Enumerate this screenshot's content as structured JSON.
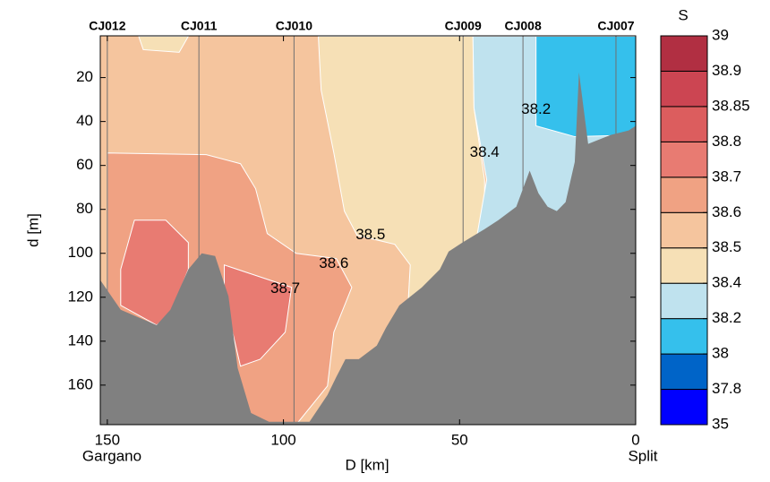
{
  "chart_data": {
    "type": "contour",
    "xlabel": "D [km]",
    "ylabel": "d [m]",
    "left_label": "Gargano",
    "right_label": "Split",
    "xlim": [
      152,
      0
    ],
    "ylim": [
      1,
      178
    ],
    "xticks": [
      150,
      100,
      50,
      0
    ],
    "yticks": [
      20,
      40,
      60,
      80,
      100,
      120,
      140,
      160
    ],
    "colorbar": {
      "title": "S",
      "levels": [
        35,
        37.8,
        38,
        38.2,
        38.4,
        38.5,
        38.6,
        38.7,
        38.8,
        38.85,
        38.9,
        39
      ],
      "colors": [
        "#0000ff",
        "#0064c8",
        "#35c0ec",
        "#bfe2ee",
        "#f6e0b6",
        "#f5c59e",
        "#f0a283",
        "#e87b72",
        "#dc5d5e",
        "#cc4552",
        "#b12f42"
      ]
    },
    "stations": [
      {
        "name": "CJ012",
        "D": 150
      },
      {
        "name": "CJ011",
        "D": 124
      },
      {
        "name": "CJ010",
        "D": 97
      },
      {
        "name": "CJ009",
        "D": 49
      },
      {
        "name": "CJ008",
        "D": 32
      },
      {
        "name": "CJ007",
        "D": 5.6
      }
    ],
    "regions": [
      {
        "level": 38.5,
        "D": [
          152,
          0,
          0,
          152
        ],
        "d": [
          1,
          1,
          178,
          178
        ]
      },
      {
        "level": 38.4,
        "D": [
          90.1,
          89.3,
          85.7,
          82.7,
          79.1,
          68.4,
          64.0,
          64.5,
          64.5,
          42.9,
          42.9,
          42.9,
          45.9,
          46.2
        ],
        "d": [
          1.2,
          25.7,
          54.3,
          80.8,
          91.8,
          95.9,
          105.3,
          119.6,
          156,
          156,
          86.9,
          66.5,
          33.9,
          1.2
        ]
      },
      {
        "level": 38.4,
        "D": [
          141.1,
          139.8,
          129.6,
          127
        ],
        "d": [
          1.2,
          7.3,
          8.5,
          1.2
        ]
      },
      {
        "level": 38.2,
        "D": [
          46.2,
          45.9,
          42.3,
          45.4,
          2.0,
          2.0
        ],
        "d": [
          1.2,
          33.9,
          66.5,
          95.1,
          95.1,
          1.2
        ]
      },
      {
        "level": 38,
        "D": [
          28.3,
          28.3,
          17.3,
          0,
          0
        ],
        "d": [
          1.2,
          42,
          46.9,
          46.1,
          1.2
        ]
      },
      {
        "level": 38.6,
        "D": [
          150,
          121.9,
          112.2,
          107.9,
          104.6,
          96.4,
          85,
          80.6,
          85.7,
          87.5,
          96.4,
          111.7,
          129.6,
          150
        ],
        "d": [
          54.3,
          55.1,
          59.2,
          70.6,
          91.0,
          100,
          102.4,
          115.5,
          135.9,
          160.4,
          178,
          178,
          140,
          140
        ]
      },
      {
        "level": 38.7,
        "D": [
          142.3,
          133.4,
          127,
          127,
          132.1,
          136,
          146.2,
          146.2
        ],
        "d": [
          84.9,
          84.9,
          95.1,
          107.3,
          127.8,
          132.7,
          123.7,
          107.3
        ]
      },
      {
        "level": 38.7,
        "D": [
          116.8,
          97.7,
          99.5,
          106.6,
          112.2,
          116.8
        ],
        "d": [
          105.3,
          115.5,
          135.9,
          148.2,
          151.4,
          119.6
        ]
      }
    ],
    "bathymetry": {
      "color": "#808080",
      "D": [
        152.0,
        146.2,
        136,
        132.1,
        127,
        123.2,
        119.4,
        115.6,
        113,
        109.2,
        104.1,
        92.6,
        87.5,
        85,
        82.4,
        78.6,
        73.5,
        70.9,
        67.1,
        60.7,
        55.6,
        53.1,
        49.2,
        42.9,
        39.0,
        33.9,
        30.1,
        27.6,
        25,
        22.4,
        19.9,
        17.3,
        16.1,
        14.8,
        13.5,
        7.1,
        2,
        0,
        0,
        152
      ],
      "d": [
        112.2,
        125.7,
        132.7,
        125.7,
        107.3,
        100,
        101.2,
        119.6,
        152.2,
        172.7,
        176.7,
        176.7,
        164.5,
        156.3,
        148.2,
        148.2,
        142,
        133.9,
        123.7,
        115.5,
        107.3,
        99.2,
        95.1,
        89,
        84.9,
        78.8,
        62.4,
        72.7,
        78.8,
        80.8,
        76.7,
        58.4,
        17.6,
        33.9,
        50.2,
        46.1,
        44.1,
        42,
        178,
        178
      ]
    },
    "contour_labels": [
      {
        "value": 38.2,
        "D": 28.3,
        "d": 34.7
      },
      {
        "value": 38.4,
        "D": 42.9,
        "d": 54.3
      },
      {
        "value": 38.5,
        "D": 75.3,
        "d": 91.8
      },
      {
        "value": 38.6,
        "D": 85.7,
        "d": 104.9
      },
      {
        "value": 38.7,
        "D": 99.5,
        "d": 116.3
      }
    ]
  }
}
